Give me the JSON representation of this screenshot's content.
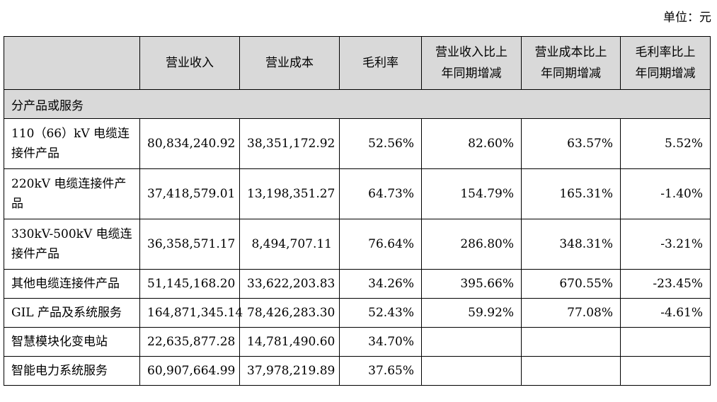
{
  "unit_label": "单位：元",
  "columns": [
    "",
    "营业收入",
    "营业成本",
    "毛利率",
    "营业收入比上年同期增减",
    "营业成本比上年同期增减",
    "毛利率比上年同期增减"
  ],
  "header_lines": {
    "c4": [
      "营业收入比上",
      "年同期增减"
    ],
    "c5": [
      "营业成本比上",
      "年同期增减"
    ],
    "c6": [
      "毛利率比上",
      "年同期增减"
    ]
  },
  "section_label": "分产品或服务",
  "rows": [
    {
      "name": "110（66）kV 电缆连接件产品",
      "revenue": "80,834,240.92",
      "cost": "38,351,172.92",
      "margin": "52.56%",
      "rev_change": "82.60%",
      "cost_change": "63.57%",
      "margin_change": "5.52%"
    },
    {
      "name": "220kV 电缆连接件产品",
      "revenue": "37,418,579.01",
      "cost": "13,198,351.27",
      "margin": "64.73%",
      "rev_change": "154.79%",
      "cost_change": "165.31%",
      "margin_change": "-1.40%"
    },
    {
      "name": "330kV-500kV 电缆连接件产品",
      "revenue": "36,358,571.17",
      "cost": "8,494,707.11",
      "margin": "76.64%",
      "rev_change": "286.80%",
      "cost_change": "348.31%",
      "margin_change": "-3.21%"
    },
    {
      "name": "其他电缆连接件产品",
      "revenue": "51,145,168.20",
      "cost": "33,622,203.83",
      "margin": "34.26%",
      "rev_change": "395.66%",
      "cost_change": "670.55%",
      "margin_change": "-23.45%"
    },
    {
      "name": "GIL 产品及系统服务",
      "revenue": "164,871,345.14",
      "cost": "78,426,283.30",
      "margin": "52.43%",
      "rev_change": "59.92%",
      "cost_change": "77.08%",
      "margin_change": "-4.61%"
    },
    {
      "name": "智慧模块化变电站",
      "revenue": "22,635,877.28",
      "cost": "14,781,490.60",
      "margin": "34.70%",
      "rev_change": "",
      "cost_change": "",
      "margin_change": ""
    },
    {
      "name": "智能电力系统服务",
      "revenue": "60,907,664.99",
      "cost": "37,978,219.89",
      "margin": "37.65%",
      "rev_change": "",
      "cost_change": "",
      "margin_change": ""
    }
  ]
}
